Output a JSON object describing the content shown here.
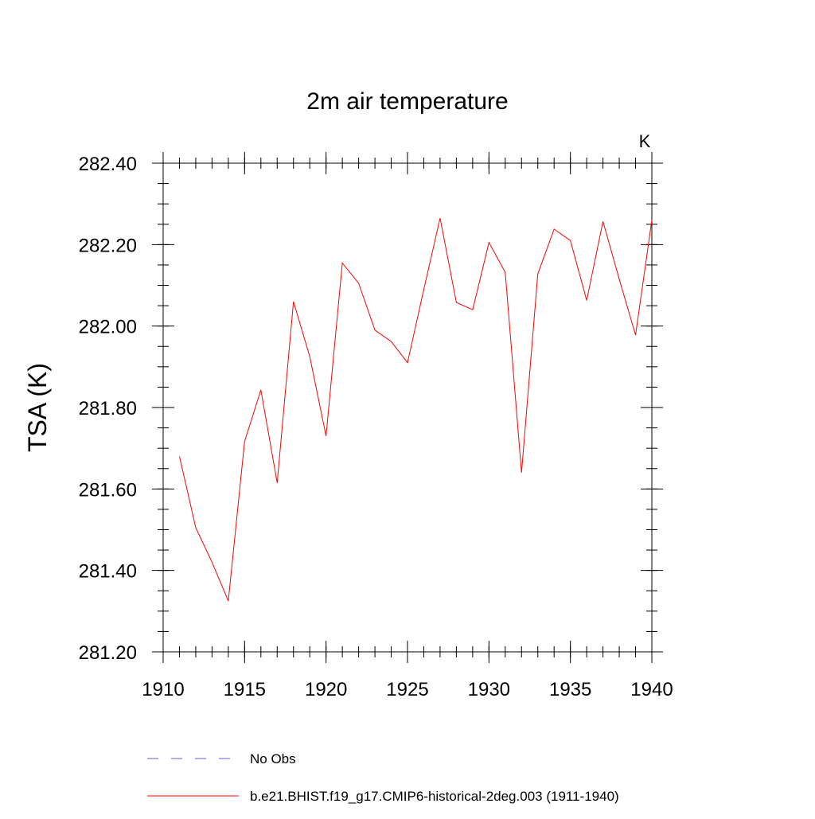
{
  "chart_data": {
    "type": "line",
    "title": "2m air temperature",
    "ylabel": "TSA  (K)",
    "xlabel": "",
    "units_label": "K",
    "xlim": [
      1910,
      1940
    ],
    "ylim": [
      281.2,
      282.4
    ],
    "x_ticks": [
      1910,
      1915,
      1920,
      1925,
      1930,
      1935,
      1940
    ],
    "x_tick_labels": [
      "1910",
      "1915",
      "1920",
      "1925",
      "1930",
      "1935",
      "1940"
    ],
    "y_ticks": [
      281.2,
      281.4,
      281.6,
      281.8,
      282.0,
      282.2,
      282.4
    ],
    "y_tick_labels": [
      "281.20",
      "281.40",
      "281.60",
      "281.80",
      "282.00",
      "282.20",
      "282.40"
    ],
    "x_minor_step": 1,
    "y_minor_step": 0.05,
    "grid": false,
    "legend_position": "bottom",
    "series": [
      {
        "name": "b.e21.BHIST.f19_g17.CMIP6-historical-2deg.003 (1911-1940)",
        "color": "#ff0000",
        "dash": "solid",
        "x": [
          1911,
          1912,
          1913,
          1914,
          1915,
          1916,
          1917,
          1918,
          1919,
          1920,
          1921,
          1922,
          1923,
          1924,
          1925,
          1926,
          1927,
          1928,
          1929,
          1930,
          1931,
          1932,
          1933,
          1934,
          1935,
          1936,
          1937,
          1938,
          1939,
          1940
        ],
        "values": [
          281.68,
          281.505,
          281.42,
          281.325,
          281.717,
          281.843,
          281.615,
          282.06,
          281.925,
          281.73,
          282.155,
          282.105,
          281.99,
          281.962,
          281.91,
          282.09,
          282.265,
          282.058,
          282.04,
          282.205,
          282.132,
          281.64,
          282.128,
          282.238,
          282.21,
          282.063,
          282.257,
          282.115,
          281.978,
          282.26
        ]
      }
    ],
    "legend": [
      {
        "label": "No Obs",
        "color": "#6a5acd",
        "dash": "dashed"
      },
      {
        "label": "b.e21.BHIST.f19_g17.CMIP6-historical-2deg.003 (1911-1940)",
        "color": "#ff0000",
        "dash": "solid"
      }
    ]
  }
}
